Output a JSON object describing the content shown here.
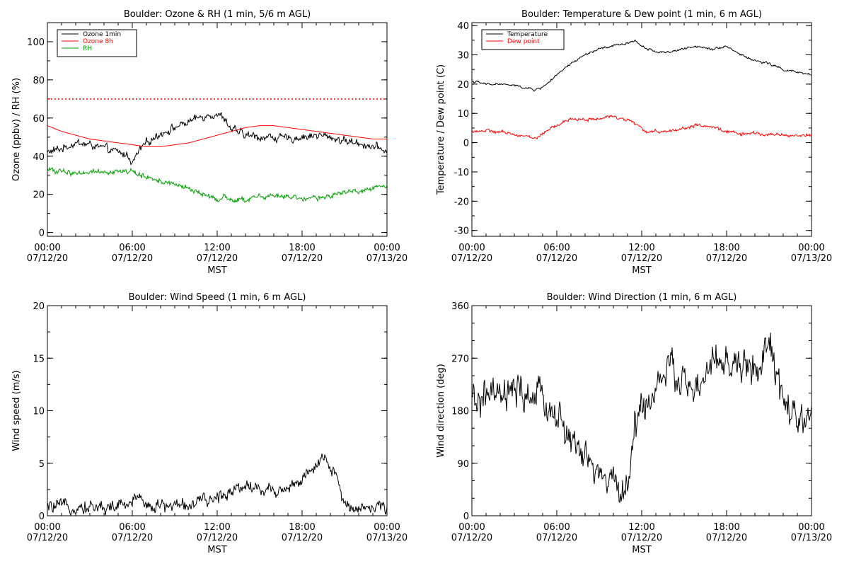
{
  "chart_data": [
    {
      "id": "ozone",
      "type": "line",
      "title": "Boulder: Ozone & RH (1 min, 5/6 m AGL)",
      "xlabel": "MST",
      "ylabel": "Ozone (ppbv) / RH (%)",
      "xlim": [
        0,
        24
      ],
      "ylim": [
        -2,
        110
      ],
      "y_ticks": [
        0,
        20,
        40,
        60,
        80,
        100
      ],
      "x_tick_labels": [
        {
          "time": "00:00",
          "date": "07/12/20"
        },
        {
          "time": "06:00",
          "date": "07/12/20"
        },
        {
          "time": "12:00",
          "date": "07/12/20"
        },
        {
          "time": "18:00",
          "date": "07/12/20"
        },
        {
          "time": "00:00",
          "date": "07/13/20"
        }
      ],
      "legend_position": "top-left",
      "reference_line": {
        "y": 70,
        "color": "#ff0000",
        "style": "dotted"
      },
      "series": [
        {
          "name": "Ozone 1min",
          "color": "#000000",
          "noise": 1.8,
          "x": [
            0,
            1,
            2,
            3,
            4,
            5,
            5.8,
            6,
            6.5,
            7,
            8,
            9,
            10,
            11,
            11.5,
            12,
            12.5,
            13,
            14,
            15,
            16,
            17,
            18,
            19,
            20,
            21,
            22,
            23,
            24
          ],
          "y": [
            42,
            44,
            47,
            46,
            44,
            42,
            40,
            36,
            43,
            47,
            52,
            55,
            58,
            61,
            62,
            62,
            60,
            54,
            51,
            50,
            50,
            49,
            50,
            51,
            50,
            48,
            47,
            45,
            43
          ]
        },
        {
          "name": "Ozone 8h",
          "color": "#ff0000",
          "noise": 0,
          "x": [
            0,
            1,
            2,
            3,
            4,
            5,
            6,
            7,
            8,
            9,
            10,
            11,
            12,
            13,
            14,
            15,
            16,
            17,
            18,
            19,
            20,
            21,
            22,
            23,
            24
          ],
          "y": [
            56,
            53,
            51,
            49,
            48,
            47,
            46,
            45,
            45,
            46,
            47,
            49,
            51,
            53,
            55,
            56,
            56,
            55,
            54,
            53,
            52,
            51,
            50,
            49,
            49
          ]
        },
        {
          "name": "RH",
          "color": "#00a000",
          "noise": 1.2,
          "x": [
            0,
            1,
            2,
            3,
            4,
            5,
            6,
            6.5,
            7,
            8,
            9,
            10,
            11,
            12,
            12.5,
            13,
            14,
            15,
            16,
            17,
            18,
            19,
            20,
            21,
            22,
            23,
            24
          ],
          "y": [
            33,
            32,
            31,
            32,
            32,
            32,
            32,
            30,
            29,
            27,
            25,
            23,
            20,
            17,
            19,
            17,
            17,
            19,
            19,
            19,
            17,
            18,
            19,
            21,
            22,
            23,
            25
          ]
        }
      ]
    },
    {
      "id": "temperature",
      "type": "line",
      "title": "Boulder: Temperature & Dew point (1 min, 6 m AGL)",
      "xlabel": "MST",
      "ylabel": "Temperature / Dew point (C)",
      "xlim": [
        0,
        24
      ],
      "ylim": [
        -32,
        41
      ],
      "y_ticks": [
        -30,
        -20,
        -10,
        0,
        10,
        20,
        30,
        40
      ],
      "x_tick_labels": [
        {
          "time": "00:00",
          "date": "07/12/20"
        },
        {
          "time": "06:00",
          "date": "07/12/20"
        },
        {
          "time": "12:00",
          "date": "07/12/20"
        },
        {
          "time": "18:00",
          "date": "07/12/20"
        },
        {
          "time": "00:00",
          "date": "07/13/20"
        }
      ],
      "legend_position": "top-left",
      "series": [
        {
          "name": "Temperature",
          "color": "#000000",
          "noise": 0.35,
          "x": [
            0,
            1,
            2,
            3,
            4,
            4.5,
            5,
            6,
            7,
            8,
            9,
            10,
            11,
            11.5,
            12,
            13,
            14,
            15,
            16,
            17,
            18,
            19,
            20,
            21,
            22,
            23,
            24
          ],
          "y": [
            21,
            20,
            20,
            19.5,
            18.5,
            18,
            19,
            23,
            27,
            30,
            32,
            33,
            34,
            35,
            33,
            31,
            31,
            32,
            33,
            32,
            33,
            30,
            28,
            27,
            25,
            24,
            23
          ]
        },
        {
          "name": "Dew point",
          "color": "#ff0000",
          "noise": 0.5,
          "x": [
            0,
            1,
            2,
            3,
            4,
            4.5,
            5,
            6,
            7,
            8,
            9,
            10,
            11,
            12,
            12.5,
            13,
            14,
            15,
            16,
            17,
            18,
            19,
            20,
            21,
            22,
            23,
            24
          ],
          "y": [
            4,
            4,
            3.5,
            3,
            2,
            1.5,
            3,
            6,
            8,
            8,
            8,
            9,
            8,
            5,
            3,
            4,
            4,
            5,
            6,
            5,
            4,
            3,
            3,
            3,
            2.5,
            2.5,
            2.5
          ]
        }
      ]
    },
    {
      "id": "wind-speed",
      "type": "line",
      "title": "Boulder: Wind Speed (1 min, 6 m AGL)",
      "xlabel": "MST",
      "ylabel": "Wind speed (m/s)",
      "xlim": [
        0,
        24
      ],
      "ylim": [
        0,
        20
      ],
      "y_ticks": [
        0,
        5,
        10,
        15,
        20
      ],
      "x_tick_labels": [
        {
          "time": "00:00",
          "date": "07/12/20"
        },
        {
          "time": "06:00",
          "date": "07/12/20"
        },
        {
          "time": "12:00",
          "date": "07/12/20"
        },
        {
          "time": "18:00",
          "date": "07/12/20"
        },
        {
          "time": "00:00",
          "date": "07/13/20"
        }
      ],
      "series": [
        {
          "name": "",
          "color": "#000000",
          "noise": 0.55,
          "x": [
            0,
            2,
            4,
            5,
            6,
            6.5,
            7,
            8,
            9,
            10,
            11,
            12,
            13,
            14,
            15,
            16,
            17,
            18,
            19,
            19.5,
            20,
            20.5,
            21,
            22,
            23,
            24
          ],
          "y": [
            0.8,
            0.9,
            0.8,
            0.9,
            1.2,
            2.2,
            1,
            0.9,
            1,
            1.1,
            1.3,
            1.7,
            2.5,
            3,
            2.5,
            2.4,
            2.7,
            3.5,
            4.5,
            5.5,
            4.5,
            3.5,
            1,
            0.9,
            0.8,
            0.7
          ]
        }
      ]
    },
    {
      "id": "wind-direction",
      "type": "line",
      "title": "Boulder: Wind Direction (1 min, 6 m AGL)",
      "xlabel": "MST",
      "ylabel": "Wind direction (deg)",
      "xlim": [
        0,
        24
      ],
      "ylim": [
        0,
        360
      ],
      "y_ticks": [
        0,
        90,
        180,
        270,
        360
      ],
      "x_tick_labels": [
        {
          "time": "00:00",
          "date": "07/12/20"
        },
        {
          "time": "06:00",
          "date": "07/12/20"
        },
        {
          "time": "12:00",
          "date": "07/12/20"
        },
        {
          "time": "18:00",
          "date": "07/12/20"
        },
        {
          "time": "00:00",
          "date": "07/13/20"
        }
      ],
      "series": [
        {
          "name": "",
          "color": "#000000",
          "noise": 25,
          "x": [
            0,
            1,
            2,
            3,
            4,
            5,
            6,
            7,
            8,
            9,
            10,
            11,
            11.5,
            12,
            12.5,
            13,
            14,
            15,
            16,
            17,
            18,
            19,
            20,
            20.5,
            21,
            21.5,
            22,
            23,
            24
          ],
          "y": [
            190,
            205,
            200,
            210,
            205,
            200,
            170,
            130,
            95,
            70,
            55,
            45,
            150,
            200,
            180,
            230,
            250,
            230,
            210,
            260,
            260,
            255,
            255,
            250,
            300,
            240,
            200,
            150,
            180
          ]
        }
      ]
    }
  ]
}
